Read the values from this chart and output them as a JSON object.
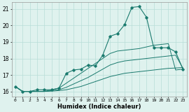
{
  "xlabel": "Humidex (Indice chaleur)",
  "x": [
    0,
    1,
    2,
    3,
    4,
    5,
    6,
    7,
    8,
    9,
    10,
    11,
    12,
    13,
    14,
    15,
    16,
    17,
    18,
    19,
    20,
    21,
    22,
    23
  ],
  "line_main": [
    16.3,
    16.0,
    16.0,
    16.1,
    16.1,
    16.1,
    16.2,
    17.1,
    17.3,
    17.35,
    17.6,
    17.55,
    18.2,
    19.35,
    19.5,
    20.05,
    21.1,
    21.15,
    20.5,
    18.65,
    18.65,
    18.65,
    18.4,
    17.35
  ],
  "line2": [
    16.3,
    16.0,
    16.0,
    16.0,
    16.0,
    16.1,
    16.2,
    16.5,
    16.8,
    17.1,
    17.4,
    17.7,
    18.0,
    18.3,
    18.45,
    18.5,
    18.55,
    18.6,
    18.7,
    18.8,
    18.85,
    18.9,
    17.3,
    17.35
  ],
  "line3": [
    16.3,
    16.0,
    16.0,
    16.0,
    16.0,
    16.05,
    16.1,
    16.25,
    16.45,
    16.65,
    16.85,
    17.1,
    17.35,
    17.6,
    17.75,
    17.85,
    17.9,
    17.95,
    18.0,
    18.05,
    18.1,
    18.15,
    18.2,
    17.4
  ],
  "line4": [
    16.3,
    16.0,
    16.0,
    16.0,
    16.0,
    16.02,
    16.05,
    16.1,
    16.2,
    16.3,
    16.45,
    16.6,
    16.75,
    16.9,
    17.0,
    17.1,
    17.15,
    17.2,
    17.25,
    17.3,
    17.35,
    17.4,
    17.42,
    17.45
  ],
  "color": "#1a7a6e",
  "bg_color": "#dff2ee",
  "grid_color": "#b8ddd8",
  "ylim": [
    15.7,
    21.4
  ],
  "xlim": [
    -0.5,
    23.5
  ],
  "yticks": [
    16,
    17,
    18,
    19,
    20,
    21
  ],
  "xticks": [
    0,
    1,
    2,
    3,
    4,
    5,
    6,
    7,
    8,
    9,
    10,
    11,
    12,
    13,
    14,
    15,
    16,
    17,
    18,
    19,
    20,
    21,
    22,
    23
  ]
}
